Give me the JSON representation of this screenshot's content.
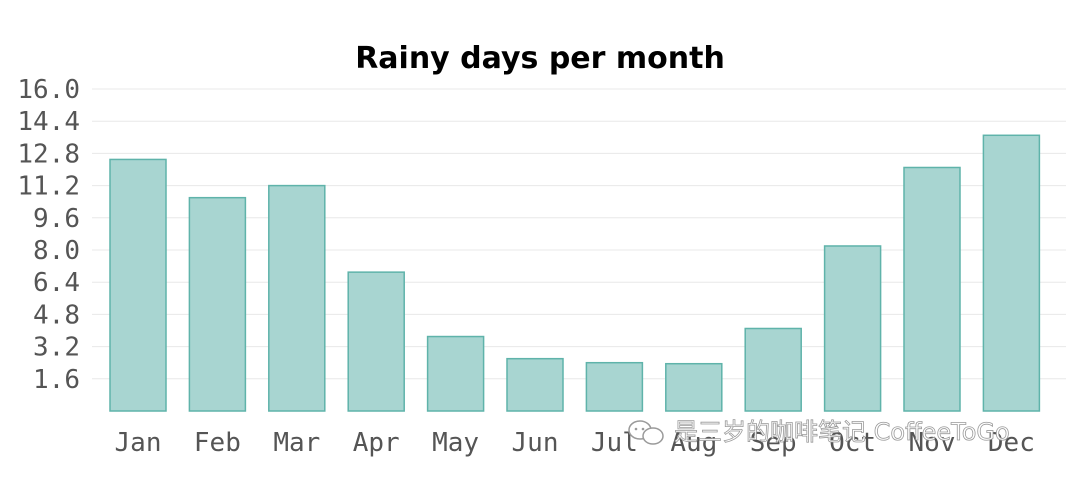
{
  "chart_data": {
    "type": "bar",
    "title": "Rainy days per month",
    "xlabel": "",
    "ylabel": "",
    "categories": [
      "Jan",
      "Feb",
      "Mar",
      "Apr",
      "May",
      "Jun",
      "Jul",
      "Aug",
      "Sep",
      "Oct",
      "Nov",
      "Dec"
    ],
    "values": [
      12.5,
      10.6,
      11.2,
      6.9,
      3.7,
      2.6,
      2.4,
      2.35,
      4.1,
      8.2,
      12.1,
      13.7
    ],
    "ylim": [
      0,
      16
    ],
    "yticks": [
      "1.6",
      "3.2",
      "4.8",
      "6.4",
      "8.0",
      "9.6",
      "11.2",
      "12.8",
      "14.4",
      "16.0"
    ],
    "grid": "horizontal",
    "bar_fill": "#a8d5d1",
    "bar_stroke": "#5fb3aa"
  },
  "watermark": {
    "text": "是三岁的咖啡笔记 CoffeeToGo",
    "icon": "chat-bubble-icon"
  }
}
